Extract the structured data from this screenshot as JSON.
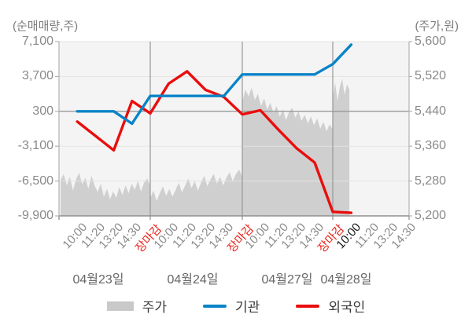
{
  "header": {
    "title_left": "(순매매량,주)",
    "title_right": "(주가,원)"
  },
  "colors": {
    "plot_bg": "#f4f4f4",
    "grid_light": "#e3e3e1",
    "grid_dark": "#979797",
    "axis_line": "#8f8f8f",
    "edge_line": "#b2b2b2",
    "price_area": "#cfcfcf",
    "institution_line": "#0984c8",
    "foreigner_line": "#ea0d0d",
    "tick_text": "#8a8a8a",
    "close_text": "#e8281e",
    "current_text": "#171717"
  },
  "legend": {
    "items": [
      {
        "label": "주가",
        "swatch": "area",
        "color": "#c9c9c9"
      },
      {
        "label": "기관",
        "swatch": "line",
        "color": "#0984c8"
      },
      {
        "label": "외국인",
        "swatch": "line",
        "color": "#ea0d0d"
      }
    ]
  },
  "chart_data": {
    "type": "composite",
    "title": "",
    "y_left_axis": {
      "label": "(순매매량,주)",
      "unit": "주",
      "range": [
        -9900,
        7100
      ],
      "ticks": [
        7100,
        3700,
        300,
        -3100,
        -6500,
        -9900
      ]
    },
    "y_right_axis": {
      "label": "(주가,원)",
      "unit": "원",
      "range": [
        5200,
        5600
      ],
      "ticks": [
        5600,
        5520,
        5440,
        5360,
        5280,
        5200
      ]
    },
    "reference_level": {
      "left": 300,
      "right": 5440
    },
    "x_days": [
      {
        "date": "04월23일",
        "times": [
          {
            "text": "10:00"
          },
          {
            "text": "11:20"
          },
          {
            "text": "13:20"
          },
          {
            "text": "14:30"
          },
          {
            "text": "장마감",
            "style": "close"
          }
        ]
      },
      {
        "date": "04월24일",
        "times": [
          {
            "text": "10:00"
          },
          {
            "text": "11:20"
          },
          {
            "text": "13:20"
          },
          {
            "text": "14:30"
          },
          {
            "text": "장마감",
            "style": "close"
          }
        ]
      },
      {
        "date": "04월27일",
        "times": [
          {
            "text": "10:00"
          },
          {
            "text": "11:20"
          },
          {
            "text": "13:20"
          },
          {
            "text": "14:30"
          },
          {
            "text": "장마감",
            "style": "close"
          }
        ]
      },
      {
        "date": "04월28일",
        "times": [
          {
            "text": "10:00",
            "style": "current"
          },
          {
            "text": "11:20"
          },
          {
            "text": "13:20"
          },
          {
            "text": "14:30"
          }
        ]
      }
    ],
    "series": [
      {
        "name": "주가",
        "type": "area",
        "axis": "right",
        "day_prices": [
          [
            5282,
            5296,
            5270,
            5290,
            5258,
            5284,
            5299,
            5272,
            5288,
            5262,
            5292,
            5270,
            5255,
            5274,
            5244,
            5262,
            5238,
            5256,
            5242,
            5266,
            5248,
            5270,
            5252,
            5274,
            5260,
            5280,
            5256,
            5276,
            5286,
            5270
          ],
          [
            5240,
            5258,
            5234,
            5252,
            5268,
            5246,
            5262,
            5244,
            5260,
            5276,
            5254,
            5270,
            5286,
            5264,
            5280,
            5258,
            5276,
            5292,
            5268,
            5284,
            5296,
            5274,
            5290,
            5270,
            5288,
            5300,
            5280,
            5296,
            5306,
            5290
          ],
          [
            5462,
            5490,
            5474,
            5494,
            5466,
            5480,
            5452,
            5470,
            5444,
            5460,
            5436,
            5452,
            5428,
            5444,
            5420,
            5438,
            5448,
            5426,
            5440,
            5418,
            5432,
            5412,
            5428,
            5408,
            5424,
            5400,
            5416,
            5394,
            5410,
            5398
          ],
          [
            5472,
            5506,
            5464,
            5496,
            5515,
            5478,
            5502,
            5490
          ]
        ],
        "last_day_coverage": 0.18
      },
      {
        "name": "기관",
        "type": "line",
        "axis": "left",
        "values_at_ticks": [
          300,
          300,
          300,
          -900,
          1800,
          1800,
          1800,
          1800,
          1800,
          3900,
          3900,
          3900,
          3900,
          3900,
          4900,
          6800
        ]
      },
      {
        "name": "외국인",
        "type": "line",
        "axis": "left",
        "values_at_ticks": [
          -700,
          -2100,
          -3500,
          1300,
          100,
          3000,
          4200,
          2400,
          1700,
          0,
          400,
          -1500,
          -3300,
          -4700,
          -9500,
          -9600
        ]
      }
    ]
  }
}
